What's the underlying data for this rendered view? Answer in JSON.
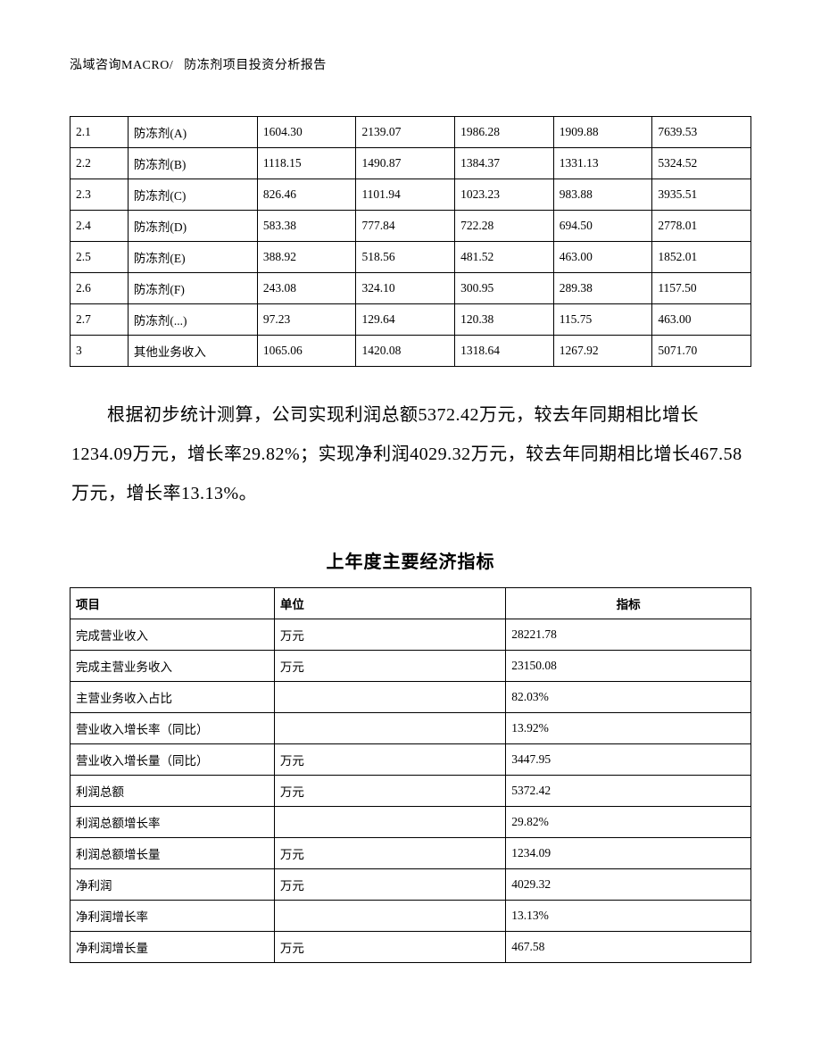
{
  "header": {
    "company": "泓域咨询MACRO/",
    "title": "防冻剂项目投资分析报告"
  },
  "table1": {
    "rows": [
      {
        "id": "2.1",
        "name": "防冻剂(A)",
        "v1": "1604.30",
        "v2": "2139.07",
        "v3": "1986.28",
        "v4": "1909.88",
        "v5": "7639.53"
      },
      {
        "id": "2.2",
        "name": "防冻剂(B)",
        "v1": "1118.15",
        "v2": "1490.87",
        "v3": "1384.37",
        "v4": "1331.13",
        "v5": "5324.52"
      },
      {
        "id": "2.3",
        "name": "防冻剂(C)",
        "v1": "826.46",
        "v2": "1101.94",
        "v3": "1023.23",
        "v4": "983.88",
        "v5": "3935.51"
      },
      {
        "id": "2.4",
        "name": "防冻剂(D)",
        "v1": "583.38",
        "v2": "777.84",
        "v3": "722.28",
        "v4": "694.50",
        "v5": "2778.01"
      },
      {
        "id": "2.5",
        "name": "防冻剂(E)",
        "v1": "388.92",
        "v2": "518.56",
        "v3": "481.52",
        "v4": "463.00",
        "v5": "1852.01"
      },
      {
        "id": "2.6",
        "name": "防冻剂(F)",
        "v1": "243.08",
        "v2": "324.10",
        "v3": "300.95",
        "v4": "289.38",
        "v5": "1157.50"
      },
      {
        "id": "2.7",
        "name": "防冻剂(...)",
        "v1": "97.23",
        "v2": "129.64",
        "v3": "120.38",
        "v4": "115.75",
        "v5": "463.00"
      },
      {
        "id": "3",
        "name": "其他业务收入",
        "v1": "1065.06",
        "v2": "1420.08",
        "v3": "1318.64",
        "v4": "1267.92",
        "v5": "5071.70"
      }
    ]
  },
  "paragraph": {
    "text": "根据初步统计测算，公司实现利润总额5372.42万元，较去年同期相比增长1234.09万元，增长率29.82%；实现净利润4029.32万元，较去年同期相比增长467.58万元，增长率13.13%。"
  },
  "section_title": "上年度主要经济指标",
  "table2": {
    "headers": {
      "h1": "项目",
      "h2": "单位",
      "h3": "指标"
    },
    "rows": [
      {
        "name": "完成营业收入",
        "unit": "万元",
        "value": "28221.78"
      },
      {
        "name": "完成主营业务收入",
        "unit": "万元",
        "value": "23150.08"
      },
      {
        "name": "主营业务收入占比",
        "unit": "",
        "value": "82.03%"
      },
      {
        "name": "营业收入增长率（同比）",
        "unit": "",
        "value": "13.92%"
      },
      {
        "name": "营业收入增长量（同比）",
        "unit": "万元",
        "value": "3447.95"
      },
      {
        "name": "利润总额",
        "unit": "万元",
        "value": "5372.42"
      },
      {
        "name": "利润总额增长率",
        "unit": "",
        "value": "29.82%"
      },
      {
        "name": "利润总额增长量",
        "unit": "万元",
        "value": "1234.09"
      },
      {
        "name": "净利润",
        "unit": "万元",
        "value": "4029.32"
      },
      {
        "name": "净利润增长率",
        "unit": "",
        "value": "13.13%"
      },
      {
        "name": "净利润增长量",
        "unit": "万元",
        "value": "467.58"
      }
    ]
  }
}
